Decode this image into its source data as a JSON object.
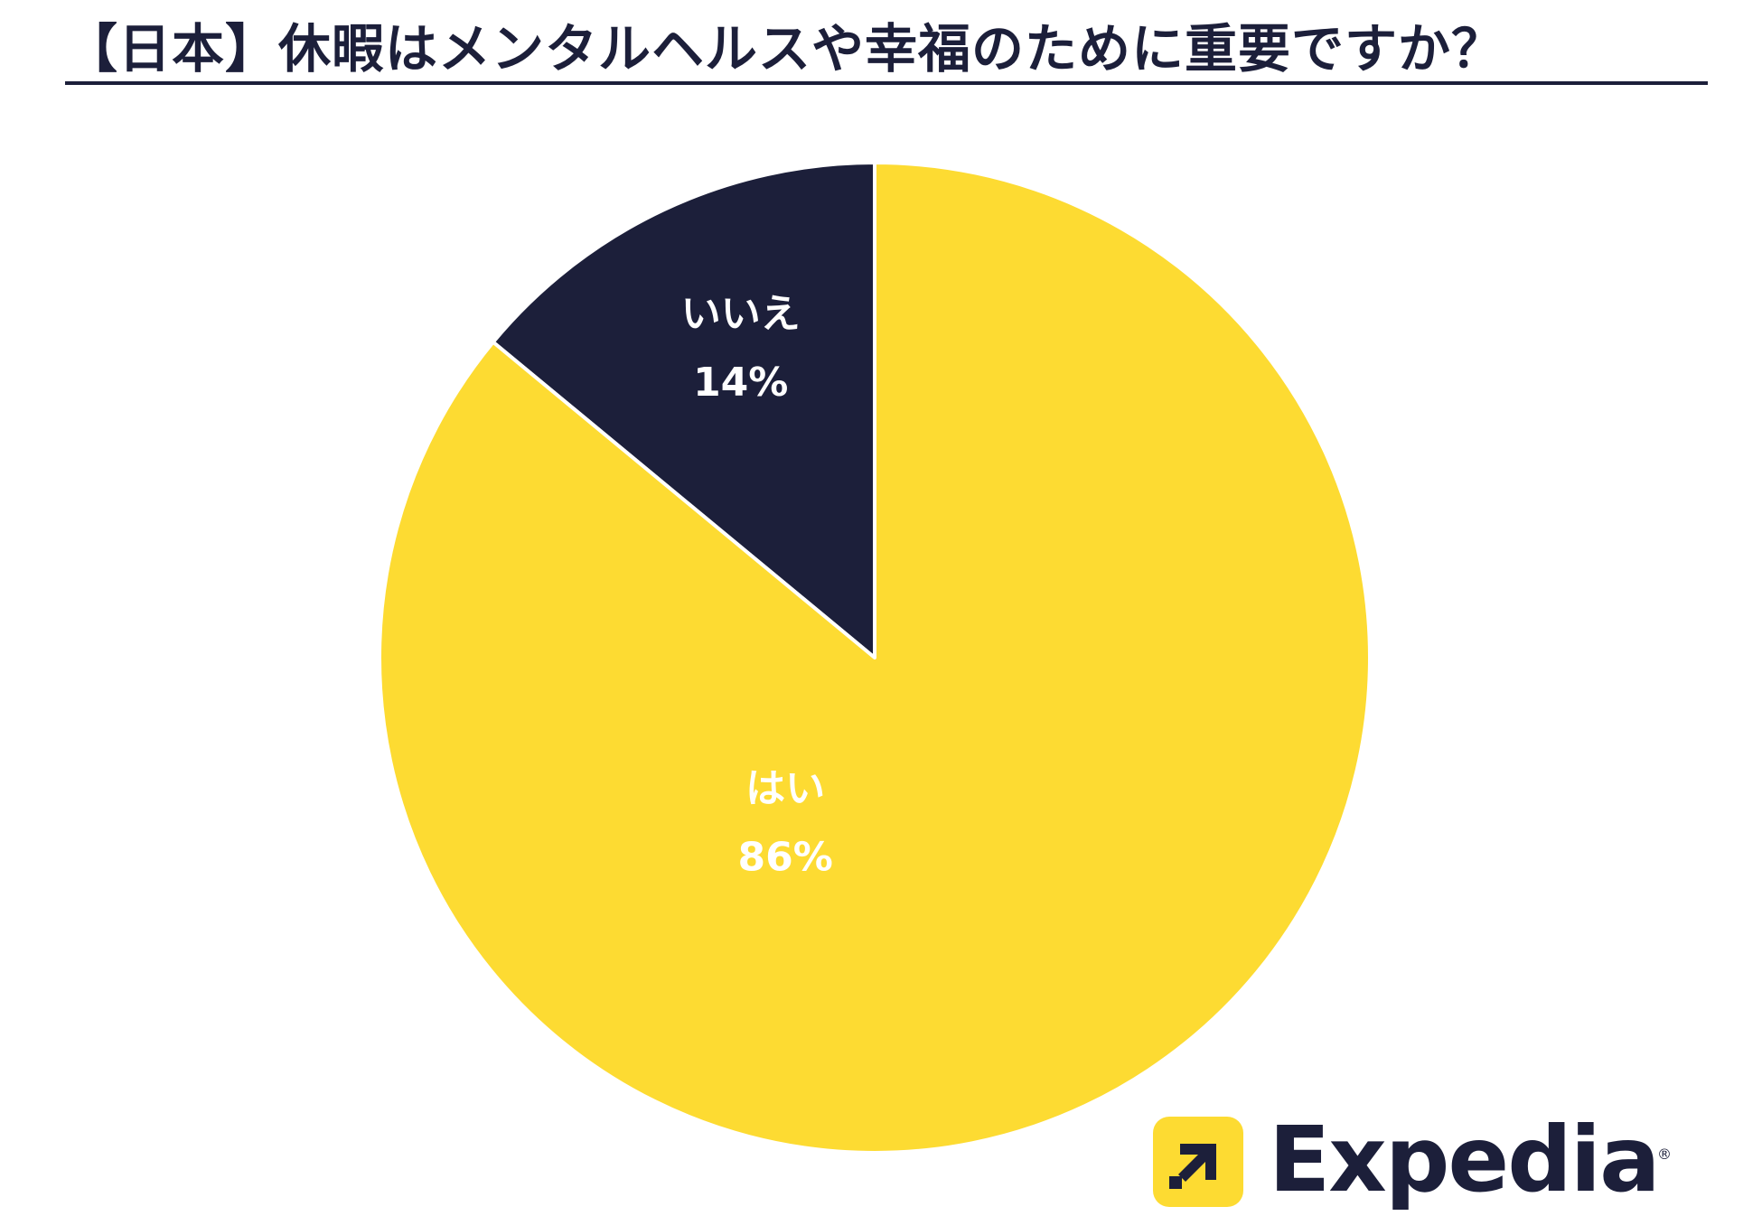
{
  "title": "【日本】休暇はメンタルヘルスや幸福のために重要ですか？",
  "chart_data": {
    "type": "pie",
    "title": "【日本】休暇はメンタルヘルスや幸福のために重要ですか？",
    "slices": [
      {
        "label": "いいえ",
        "value": 14,
        "value_label": "14%",
        "color": "#1c1f3a",
        "text_color": "#ffffff"
      },
      {
        "label": "はい",
        "value": 86,
        "value_label": "86%",
        "color": "#fddb32",
        "text_color": "#ffffff"
      }
    ],
    "start": "12 o'clock, counterclockwise for いいえ",
    "legend": "none"
  },
  "brand": {
    "name": "Expedia",
    "registered_mark": "®",
    "logo_icon": "arrow-up-right-icon",
    "accent": "#fddb32",
    "dark": "#1c1f3a"
  }
}
